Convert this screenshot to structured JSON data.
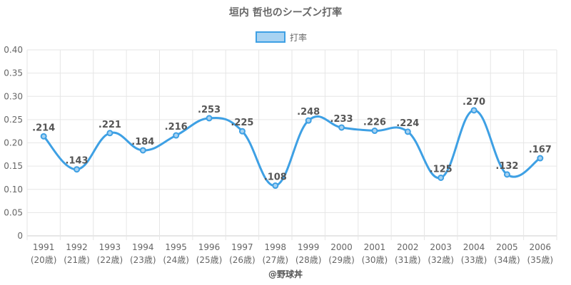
{
  "chart_data": {
    "type": "line",
    "title": "垣内 哲也のシーズン打率",
    "legend": {
      "label": "打率",
      "position": "top"
    },
    "credit": "@野球丼",
    "categories": [
      "1991",
      "1992",
      "1993",
      "1994",
      "1995",
      "1996",
      "1997",
      "1998",
      "1999",
      "2000",
      "2001",
      "2002",
      "2003",
      "2004",
      "2005",
      "2006"
    ],
    "sublabels": [
      "(20歳)",
      "(21歳)",
      "(22歳)",
      "(23歳)",
      "(24歳)",
      "(25歳)",
      "(26歳)",
      "(27歳)",
      "(28歳)",
      "(29歳)",
      "(30歳)",
      "(31歳)",
      "(32歳)",
      "(33歳)",
      "(34歳)",
      "(35歳)"
    ],
    "series": [
      {
        "name": "打率",
        "values": [
          0.214,
          0.143,
          0.221,
          0.184,
          0.216,
          0.253,
          0.225,
          0.108,
          0.248,
          0.233,
          0.226,
          0.224,
          0.125,
          0.27,
          0.132,
          0.167
        ],
        "labels": [
          ".214",
          ".143",
          ".221",
          ".184",
          ".216",
          ".253",
          ".225",
          ".108",
          ".248",
          ".233",
          ".226",
          ".224",
          ".125",
          ".270",
          ".132",
          ".167"
        ],
        "color": "#3ea0e4"
      }
    ],
    "ylim": [
      0,
      0.4
    ],
    "yticks": [
      0,
      0.05,
      0.1,
      0.15,
      0.2,
      0.25,
      0.3,
      0.35,
      0.4
    ],
    "ytick_labels": [
      "0",
      "0.05",
      "0.10",
      "0.15",
      "0.20",
      "0.25",
      "0.30",
      "0.35",
      "0.40"
    ],
    "grid": true
  }
}
